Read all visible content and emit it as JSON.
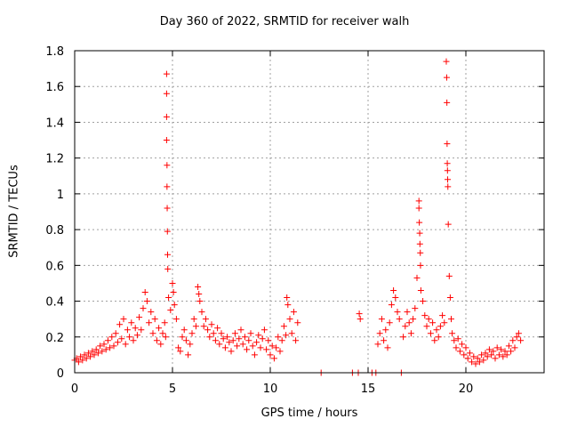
{
  "chart_data": {
    "type": "scatter",
    "title": "Day 360 of 2022, SRMTID for receiver walh",
    "xlabel": "GPS time / hours",
    "ylabel": "SRMTID / TECUs",
    "xlim": [
      0,
      24
    ],
    "ylim": [
      0,
      1.8
    ],
    "xticks": [
      0,
      5,
      10,
      15,
      20
    ],
    "yticks": [
      0,
      0.2,
      0.4,
      0.6,
      0.8,
      1,
      1.2,
      1.4,
      1.6,
      1.8
    ],
    "xtick_labels": [
      "0",
      "5",
      "10",
      "15",
      "20"
    ],
    "ytick_labels": [
      "0",
      "0.2",
      "0.4",
      "0.6",
      "0.8",
      "1",
      "1.2",
      "1.4",
      "1.6",
      "1.8"
    ],
    "grid": true,
    "marker": "+",
    "color": "#ff0000",
    "series": [
      {
        "name": "SRMTID",
        "points": [
          [
            0.0,
            0.07
          ],
          [
            0.1,
            0.08
          ],
          [
            0.2,
            0.06
          ],
          [
            0.3,
            0.09
          ],
          [
            0.4,
            0.07
          ],
          [
            0.5,
            0.1
          ],
          [
            0.6,
            0.08
          ],
          [
            0.7,
            0.11
          ],
          [
            0.8,
            0.09
          ],
          [
            0.9,
            0.12
          ],
          [
            1.0,
            0.1
          ],
          [
            1.1,
            0.13
          ],
          [
            1.2,
            0.11
          ],
          [
            1.3,
            0.15
          ],
          [
            1.4,
            0.12
          ],
          [
            1.5,
            0.16
          ],
          [
            1.6,
            0.13
          ],
          [
            1.7,
            0.18
          ],
          [
            1.8,
            0.14
          ],
          [
            1.9,
            0.2
          ],
          [
            2.0,
            0.15
          ],
          [
            2.1,
            0.22
          ],
          [
            2.2,
            0.17
          ],
          [
            2.3,
            0.27
          ],
          [
            2.4,
            0.19
          ],
          [
            2.5,
            0.3
          ],
          [
            2.6,
            0.16
          ],
          [
            2.7,
            0.24
          ],
          [
            2.8,
            0.2
          ],
          [
            2.9,
            0.28
          ],
          [
            3.0,
            0.18
          ],
          [
            3.1,
            0.25
          ],
          [
            3.2,
            0.21
          ],
          [
            3.3,
            0.31
          ],
          [
            3.4,
            0.24
          ],
          [
            3.5,
            0.36
          ],
          [
            3.6,
            0.45
          ],
          [
            3.7,
            0.4
          ],
          [
            3.8,
            0.28
          ],
          [
            3.9,
            0.34
          ],
          [
            4.0,
            0.22
          ],
          [
            4.1,
            0.3
          ],
          [
            4.2,
            0.18
          ],
          [
            4.3,
            0.25
          ],
          [
            4.4,
            0.16
          ],
          [
            4.5,
            0.22
          ],
          [
            4.6,
            0.28
          ],
          [
            4.65,
            0.2
          ],
          [
            4.7,
            1.67
          ],
          [
            4.7,
            1.56
          ],
          [
            4.7,
            1.43
          ],
          [
            4.7,
            1.3
          ],
          [
            4.72,
            1.16
          ],
          [
            4.72,
            1.04
          ],
          [
            4.73,
            0.92
          ],
          [
            4.74,
            0.79
          ],
          [
            4.75,
            0.66
          ],
          [
            4.76,
            0.58
          ],
          [
            4.8,
            0.42
          ],
          [
            4.9,
            0.35
          ],
          [
            5.0,
            0.5
          ],
          [
            5.05,
            0.45
          ],
          [
            5.1,
            0.38
          ],
          [
            5.2,
            0.3
          ],
          [
            5.3,
            0.14
          ],
          [
            5.4,
            0.12
          ],
          [
            5.5,
            0.2
          ],
          [
            5.6,
            0.24
          ],
          [
            5.7,
            0.18
          ],
          [
            5.8,
            0.1
          ],
          [
            5.9,
            0.16
          ],
          [
            6.0,
            0.22
          ],
          [
            6.1,
            0.3
          ],
          [
            6.2,
            0.26
          ],
          [
            6.3,
            0.48
          ],
          [
            6.35,
            0.44
          ],
          [
            6.4,
            0.4
          ],
          [
            6.5,
            0.34
          ],
          [
            6.6,
            0.26
          ],
          [
            6.7,
            0.3
          ],
          [
            6.8,
            0.24
          ],
          [
            6.9,
            0.2
          ],
          [
            7.0,
            0.27
          ],
          [
            7.1,
            0.22
          ],
          [
            7.2,
            0.18
          ],
          [
            7.3,
            0.25
          ],
          [
            7.4,
            0.16
          ],
          [
            7.5,
            0.22
          ],
          [
            7.6,
            0.19
          ],
          [
            7.7,
            0.14
          ],
          [
            7.8,
            0.2
          ],
          [
            7.9,
            0.17
          ],
          [
            8.0,
            0.12
          ],
          [
            8.1,
            0.18
          ],
          [
            8.2,
            0.22
          ],
          [
            8.3,
            0.15
          ],
          [
            8.4,
            0.19
          ],
          [
            8.5,
            0.24
          ],
          [
            8.6,
            0.16
          ],
          [
            8.7,
            0.2
          ],
          [
            8.8,
            0.13
          ],
          [
            8.9,
            0.18
          ],
          [
            9.0,
            0.22
          ],
          [
            9.1,
            0.15
          ],
          [
            9.2,
            0.1
          ],
          [
            9.3,
            0.17
          ],
          [
            9.4,
            0.21
          ],
          [
            9.5,
            0.14
          ],
          [
            9.6,
            0.19
          ],
          [
            9.7,
            0.24
          ],
          [
            9.8,
            0.13
          ],
          [
            9.9,
            0.18
          ],
          [
            10.0,
            0.1
          ],
          [
            10.1,
            0.15
          ],
          [
            10.2,
            0.08
          ],
          [
            10.3,
            0.14
          ],
          [
            10.4,
            0.2
          ],
          [
            10.5,
            0.12
          ],
          [
            10.6,
            0.18
          ],
          [
            10.7,
            0.26
          ],
          [
            10.8,
            0.21
          ],
          [
            10.85,
            0.42
          ],
          [
            10.9,
            0.38
          ],
          [
            11.0,
            0.3
          ],
          [
            11.1,
            0.22
          ],
          [
            11.2,
            0.34
          ],
          [
            11.3,
            0.18
          ],
          [
            11.4,
            0.28
          ],
          [
            12.6,
            0.0
          ],
          [
            14.2,
            0.0
          ],
          [
            14.5,
            0.0
          ],
          [
            14.55,
            0.33
          ],
          [
            14.6,
            0.3
          ],
          [
            15.2,
            0.0
          ],
          [
            15.4,
            0.0
          ],
          [
            15.5,
            0.16
          ],
          [
            15.6,
            0.22
          ],
          [
            15.7,
            0.3
          ],
          [
            15.8,
            0.18
          ],
          [
            15.9,
            0.24
          ],
          [
            16.0,
            0.14
          ],
          [
            16.1,
            0.28
          ],
          [
            16.2,
            0.38
          ],
          [
            16.3,
            0.46
          ],
          [
            16.4,
            0.42
          ],
          [
            16.5,
            0.34
          ],
          [
            16.6,
            0.3
          ],
          [
            16.7,
            0.0
          ],
          [
            16.8,
            0.2
          ],
          [
            16.9,
            0.26
          ],
          [
            17.0,
            0.34
          ],
          [
            17.1,
            0.28
          ],
          [
            17.2,
            0.22
          ],
          [
            17.3,
            0.3
          ],
          [
            17.4,
            0.36
          ],
          [
            17.5,
            0.53
          ],
          [
            17.6,
            0.96
          ],
          [
            17.6,
            0.92
          ],
          [
            17.62,
            0.84
          ],
          [
            17.64,
            0.78
          ],
          [
            17.65,
            0.72
          ],
          [
            17.67,
            0.67
          ],
          [
            17.68,
            0.6
          ],
          [
            17.7,
            0.46
          ],
          [
            17.8,
            0.4
          ],
          [
            17.9,
            0.32
          ],
          [
            18.0,
            0.26
          ],
          [
            18.1,
            0.3
          ],
          [
            18.2,
            0.22
          ],
          [
            18.3,
            0.28
          ],
          [
            18.4,
            0.18
          ],
          [
            18.5,
            0.24
          ],
          [
            18.6,
            0.2
          ],
          [
            18.7,
            0.26
          ],
          [
            18.8,
            0.32
          ],
          [
            18.9,
            0.28
          ],
          [
            19.0,
            1.74
          ],
          [
            19.02,
            1.65
          ],
          [
            19.03,
            1.51
          ],
          [
            19.04,
            1.28
          ],
          [
            19.05,
            1.17
          ],
          [
            19.06,
            1.13
          ],
          [
            19.07,
            1.08
          ],
          [
            19.08,
            1.04
          ],
          [
            19.1,
            0.83
          ],
          [
            19.15,
            0.54
          ],
          [
            19.2,
            0.42
          ],
          [
            19.25,
            0.3
          ],
          [
            19.3,
            0.22
          ],
          [
            19.4,
            0.18
          ],
          [
            19.5,
            0.14
          ],
          [
            19.6,
            0.19
          ],
          [
            19.7,
            0.12
          ],
          [
            19.8,
            0.16
          ],
          [
            19.9,
            0.1
          ],
          [
            20.0,
            0.14
          ],
          [
            20.1,
            0.08
          ],
          [
            20.2,
            0.11
          ],
          [
            20.3,
            0.06
          ],
          [
            20.4,
            0.09
          ],
          [
            20.5,
            0.05
          ],
          [
            20.6,
            0.08
          ],
          [
            20.7,
            0.06
          ],
          [
            20.8,
            0.1
          ],
          [
            20.9,
            0.07
          ],
          [
            21.0,
            0.11
          ],
          [
            21.1,
            0.09
          ],
          [
            21.2,
            0.13
          ],
          [
            21.3,
            0.1
          ],
          [
            21.4,
            0.12
          ],
          [
            21.5,
            0.08
          ],
          [
            21.6,
            0.14
          ],
          [
            21.7,
            0.1
          ],
          [
            21.8,
            0.13
          ],
          [
            21.9,
            0.09
          ],
          [
            22.0,
            0.12
          ],
          [
            22.1,
            0.1
          ],
          [
            22.2,
            0.15
          ],
          [
            22.3,
            0.12
          ],
          [
            22.4,
            0.18
          ],
          [
            22.5,
            0.14
          ],
          [
            22.6,
            0.2
          ],
          [
            22.7,
            0.22
          ],
          [
            22.8,
            0.18
          ]
        ]
      }
    ]
  }
}
